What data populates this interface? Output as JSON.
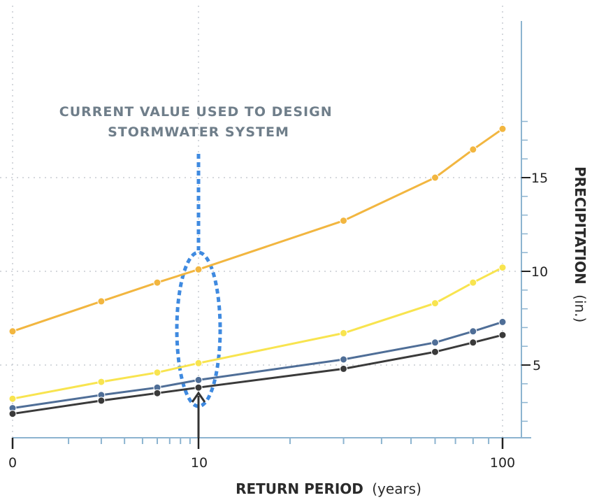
{
  "chart_data": {
    "type": "line",
    "x_scale": "log",
    "x_ticks": [
      "0",
      "10",
      "100"
    ],
    "y_ticks": [
      "5",
      "10",
      "15"
    ],
    "xlabel": "RETURN PERIOD",
    "xlabel_unit": "(years)",
    "ylabel": "PRECIPITATION",
    "ylabel_unit": "(in.)",
    "ylim": [
      1.0,
      22.0
    ],
    "grid": true,
    "annotation": "CURRENT VALUE USED TO DESIGN STORMWATER SYSTEM",
    "annotation_lines": [
      "CURRENT VALUE USED TO DESIGN",
      "STORMWATER SYSTEM"
    ],
    "highlight_x": 10,
    "series": [
      {
        "color": "#f2b640",
        "x": [
          1,
          3,
          6,
          10,
          30,
          60,
          80,
          100
        ],
        "values": [
          6.8,
          8.4,
          9.4,
          10.1,
          12.7,
          15.0,
          16.5,
          17.6
        ]
      },
      {
        "color": "#f8e44f",
        "x": [
          1,
          3,
          6,
          10,
          30,
          60,
          80,
          100
        ],
        "values": [
          3.2,
          4.1,
          4.6,
          5.1,
          6.7,
          8.3,
          9.4,
          10.2
        ]
      },
      {
        "color": "#4f6e97",
        "x": [
          1,
          3,
          6,
          10,
          30,
          60,
          80,
          100
        ],
        "values": [
          2.7,
          3.4,
          3.8,
          4.2,
          5.3,
          6.2,
          6.8,
          7.3
        ]
      },
      {
        "color": "#3a3a3a",
        "x": [
          1,
          3,
          6,
          10,
          30,
          60,
          80,
          100
        ],
        "values": [
          2.4,
          3.1,
          3.5,
          3.8,
          4.8,
          5.7,
          6.2,
          6.6
        ]
      }
    ],
    "colors": {
      "axis": "#8cb4d0",
      "grid": "#c7ccd2",
      "annotation_text": "#6f7e8a",
      "dotted_highlight": "#3f8ae0",
      "arrow": "#333333"
    }
  }
}
